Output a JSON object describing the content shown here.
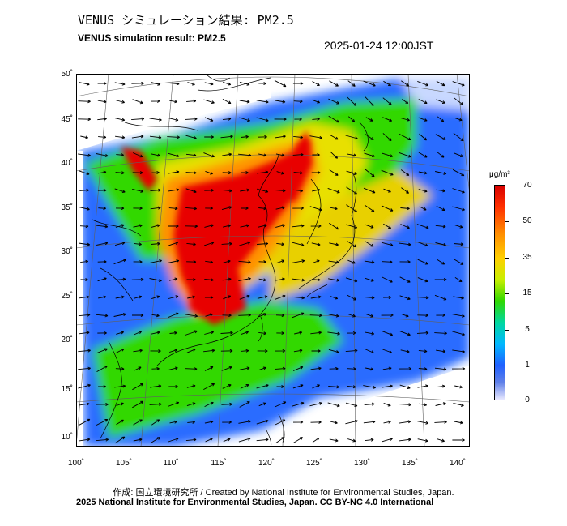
{
  "title_jp": "VENUS シミュレーション結果: PM2.5",
  "title_en": "VENUS simulation result: PM2.5",
  "timestamp": "2025-01-24 12:00JST",
  "credit": "作成: 国立環境研究所 / Created by National Institute for Environmental Studies, Japan.",
  "copyright": "2025 National Institute for Environmental Studies, Japan. CC BY-NC 4.0 International",
  "lat_labels": [
    "50˚",
    "45˚",
    "40˚",
    "35˚",
    "30˚",
    "25˚",
    "20˚",
    "15˚",
    "10˚"
  ],
  "lon_labels": [
    "100˚",
    "105˚",
    "110˚",
    "115˚",
    "120˚",
    "125˚",
    "130˚",
    "135˚",
    "140˚"
  ],
  "colorbar": {
    "unit": "μg/m³",
    "labels": [
      "70",
      "50",
      "35",
      "15",
      "5",
      "1",
      "0"
    ]
  },
  "colors": {
    "high": "#e80000",
    "orange": "#ff9000",
    "yellow": "#e8e000",
    "green": "#30d800",
    "cyan": "#00c8d0",
    "blue": "#2a6cff",
    "light": "#c8d8ff"
  }
}
